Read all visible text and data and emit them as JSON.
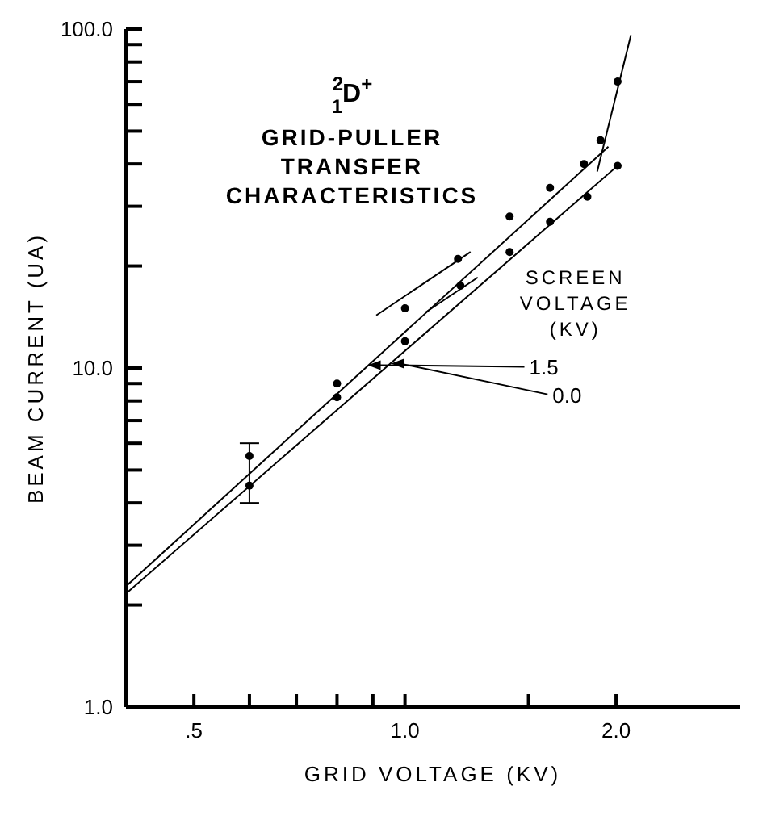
{
  "chart_data": {
    "type": "scatter",
    "title": "$^{2}$$_{1}$D$^{+}$",
    "subtitle": "GRID-PULLER TRANSFER CHARACTERISTICS",
    "xlabel": "GRID VOLTAGE (KV)",
    "ylabel": "BEAM CURRENT (UA)",
    "legend_title": "SCREEN VOLTAGE (KV)",
    "annotations": [
      {
        "text": "1.5",
        "x": 0.885,
        "y": 10.2
      },
      {
        "text": "0.0",
        "x": 0.955,
        "y": 10.3
      }
    ],
    "log": "xy",
    "grid": false,
    "marker": "circle",
    "line_style": "solid",
    "xlim": [
      0.4,
      3.0
    ],
    "xticks": [
      {
        "value": 0.5,
        "label": ".5"
      },
      {
        "value": 0.6,
        "label": null
      },
      {
        "value": 0.7,
        "label": null
      },
      {
        "value": 0.8,
        "label": null
      },
      {
        "value": 0.9,
        "label": null
      },
      {
        "value": 1.0,
        "label": "1.0"
      },
      {
        "value": 1.5,
        "label": null
      },
      {
        "value": 2.0,
        "label": "2.0"
      }
    ],
    "ylim": [
      1,
      100
    ],
    "yticks": [
      {
        "value": 1,
        "label": "1.0"
      },
      {
        "value": 2,
        "label": null
      },
      {
        "value": 3,
        "label": null
      },
      {
        "value": 4,
        "label": null
      },
      {
        "value": 5,
        "label": null
      },
      {
        "value": 6,
        "label": null
      },
      {
        "value": 7,
        "label": null
      },
      {
        "value": 8,
        "label": null
      },
      {
        "value": 9,
        "label": null
      },
      {
        "value": 10,
        "label": "10.0"
      },
      {
        "value": 20,
        "label": null
      },
      {
        "value": 30,
        "label": null
      },
      {
        "value": 40,
        "label": null
      },
      {
        "value": 50,
        "label": null
      },
      {
        "value": 60,
        "label": null
      },
      {
        "value": 70,
        "label": null
      },
      {
        "value": 80,
        "label": null
      },
      {
        "value": 90,
        "label": null
      },
      {
        "value": 100,
        "label": "100.0"
      }
    ],
    "series": [
      {
        "color": "#000000",
        "x": [
          0.6,
          0.8,
          1.0,
          1.19,
          1.41,
          1.61,
          1.8,
          1.9,
          2.01
        ],
        "values": [
          5.5,
          9,
          15,
          21,
          28,
          34,
          40,
          47,
          70
        ],
        "errors": [
          [
            4.0,
            6.0
          ],
          null,
          null,
          null,
          null,
          null,
          null,
          null,
          null
        ]
      },
      {
        "color": "#000000",
        "x": [
          0.6,
          0.8,
          1.0,
          1.2,
          1.41,
          1.61,
          1.82,
          2.01
        ],
        "values": [
          4.5,
          8.2,
          12,
          17.5,
          22,
          27,
          32,
          39.5
        ]
      },
      {
        "type": "line",
        "marker": "none",
        "color": "#000000",
        "x": [
          0.4,
          1.95
        ],
        "values": [
          2.27,
          45
        ]
      },
      {
        "type": "line",
        "marker": "none",
        "color": "#000000",
        "x": [
          1.88,
          2.1
        ],
        "values": [
          38,
          96
        ]
      },
      {
        "type": "line",
        "marker": "none",
        "color": "#000000",
        "x": [
          0.4,
          2.01
        ],
        "values": [
          2.16,
          39.5
        ]
      },
      {
        "type": "line",
        "marker": "none",
        "color": "#000000",
        "x": [
          0.91,
          1.24
        ],
        "values": [
          14.3,
          22
        ]
      },
      {
        "type": "line",
        "marker": "none",
        "color": "#000000",
        "x": [
          1.07,
          1.27
        ],
        "values": [
          14.6,
          18.5
        ]
      }
    ]
  }
}
